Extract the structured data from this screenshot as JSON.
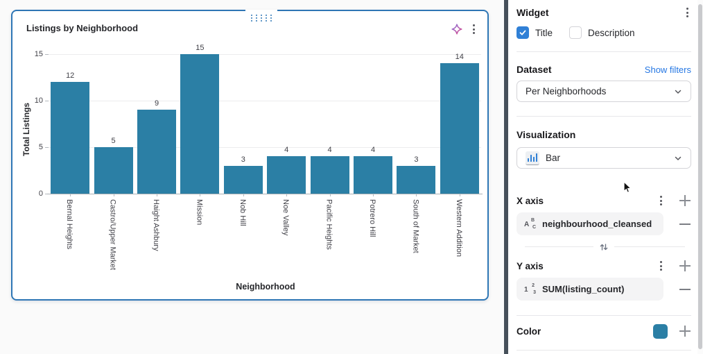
{
  "colors": {
    "bar": "#2b7fa5",
    "selection_border": "#2e76b5",
    "link_blue": "#2577e3",
    "checkbox_blue": "#3080d6",
    "panel_divider": "#46505a"
  },
  "chart_data": {
    "type": "bar",
    "title": "Listings by Neighborhood",
    "categories": [
      "Bernal Heights",
      "Castro/Upper Market",
      "Haight Ashbury",
      "Mission",
      "Nob Hill",
      "Noe Valley",
      "Pacific Heights",
      "Potrero Hill",
      "South of Market",
      "Western Addition"
    ],
    "values": [
      12,
      5,
      9,
      15,
      3,
      4,
      4,
      4,
      3,
      14
    ],
    "xlabel": "Neighborhood",
    "ylabel": "Total Listings",
    "ylim": [
      0,
      15
    ],
    "yticks": [
      0,
      5,
      10,
      15
    ],
    "bar_color": "#2b7fa5",
    "grid": true,
    "value_labels": true,
    "legend": "none"
  },
  "panel": {
    "header": {
      "title": "Widget"
    },
    "checkboxes": [
      {
        "label": "Title",
        "checked": true
      },
      {
        "label": "Description",
        "checked": false
      }
    ],
    "dataset": {
      "label": "Dataset",
      "link": "Show filters",
      "selected": "Per Neighborhoods"
    },
    "visualization": {
      "label": "Visualization",
      "selected": "Bar"
    },
    "x_axis": {
      "label": "X axis",
      "field": "neighbourhood_cleansed",
      "field_type_icon": {
        "main": "A",
        "sup": "B",
        "sub": "C"
      }
    },
    "y_axis": {
      "label": "Y axis",
      "field": "SUM(listing_count)",
      "field_type_icon": {
        "main": "1",
        "sup": "2",
        "sub": "3"
      }
    },
    "color": {
      "label": "Color",
      "swatch": "#2b7fa5"
    }
  }
}
